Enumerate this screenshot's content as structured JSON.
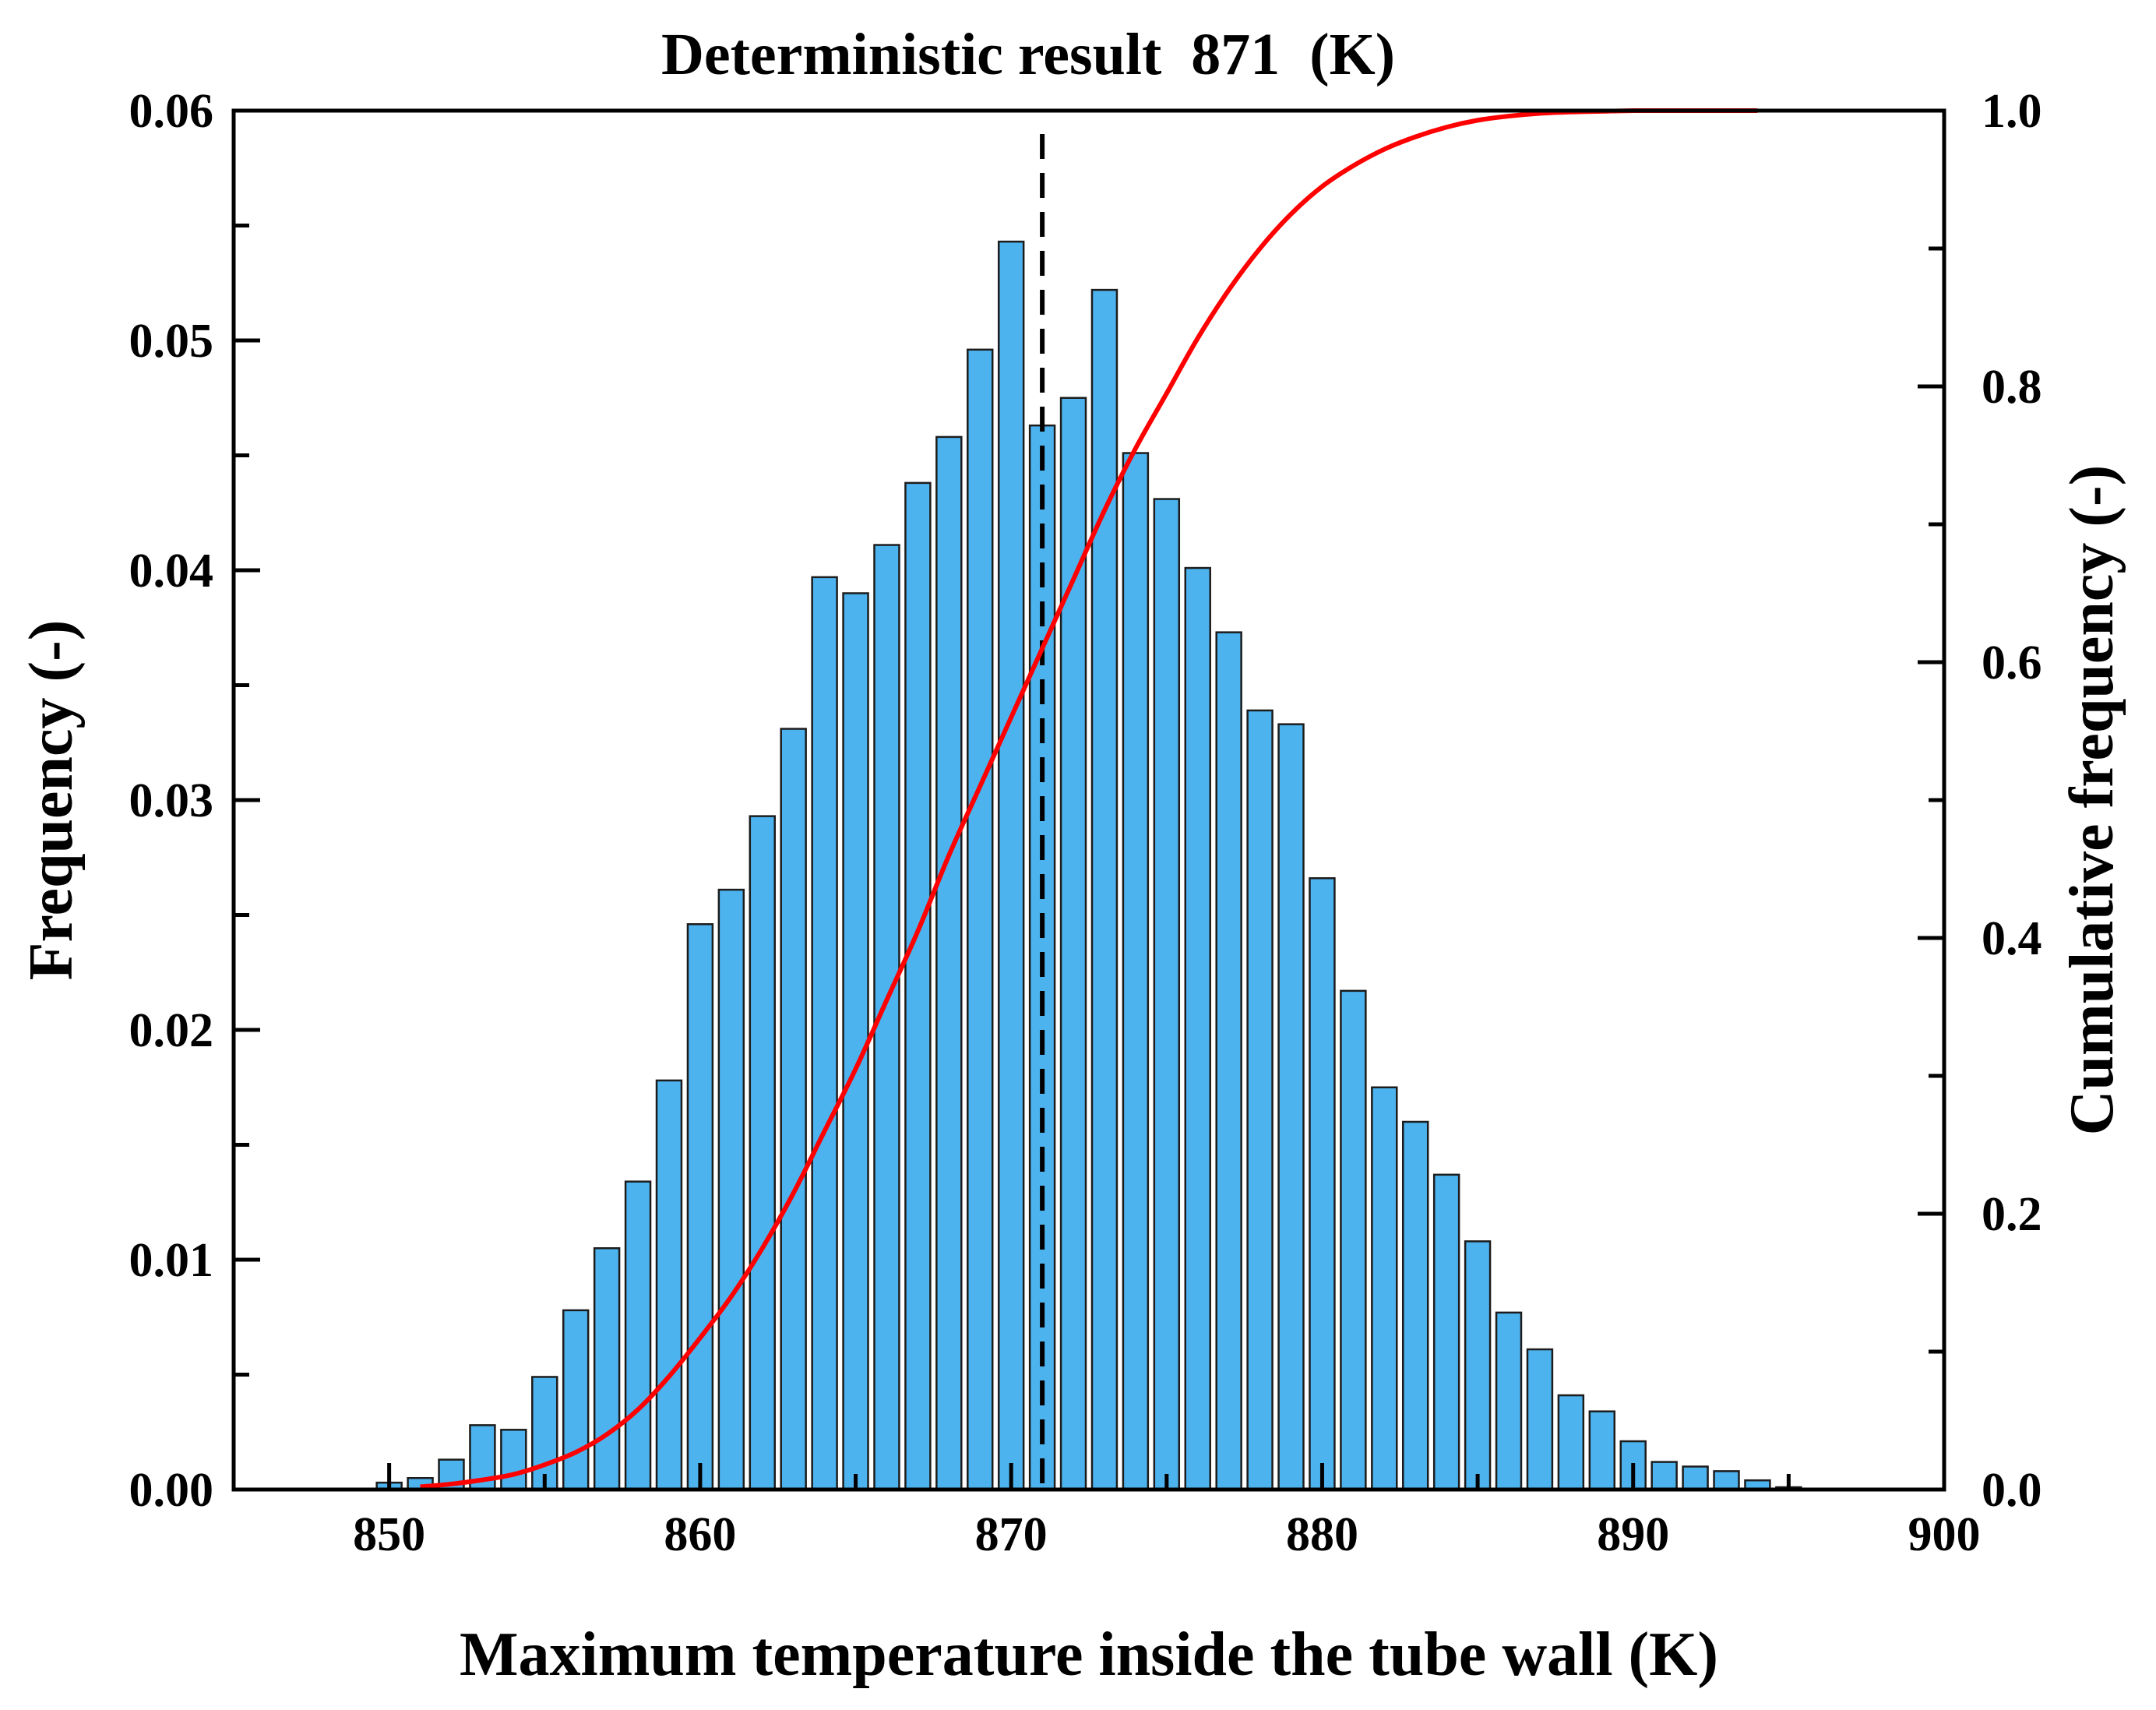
{
  "chart_data": {
    "type": "bar",
    "title": "Deterministic result  871  (K)",
    "xlabel": "Maximum temperature inside the tube wall (K)",
    "ylabel": "Frequency (-)",
    "y2label": "Cumulative frequency (-)",
    "xlim": [
      845,
      900
    ],
    "ylim": [
      0,
      0.06
    ],
    "y2lim": [
      0,
      1.0
    ],
    "xticks": [
      "850",
      "860",
      "870",
      "880",
      "890",
      "900"
    ],
    "yticks": [
      "0.00",
      "0.01",
      "0.02",
      "0.03",
      "0.04",
      "0.05",
      "0.06"
    ],
    "y2ticks": [
      "0.0",
      "0.2",
      "0.4",
      "0.6",
      "0.8",
      "1.0"
    ],
    "deterministic_value": 871,
    "bar_width": 0.8,
    "colors": {
      "bars": "#4db3ef",
      "bar_edge": "#1c1c1c",
      "cdf": "#ff0000",
      "deterministic_line": "#000000"
    },
    "series": [
      {
        "name": "Frequency",
        "type": "bar",
        "axis": "left",
        "x": [
          850,
          851,
          852,
          853,
          854,
          855,
          856,
          857,
          858,
          859,
          860,
          861,
          862,
          863,
          864,
          865,
          866,
          867,
          868,
          869,
          870,
          871,
          872,
          873,
          874,
          875,
          876,
          877,
          878,
          879,
          880,
          881,
          882,
          883,
          884,
          885,
          886,
          887,
          888,
          889,
          890,
          891,
          892,
          893,
          894,
          895
        ],
        "values": [
          0.0003,
          0.0005,
          0.0013,
          0.0028,
          0.0026,
          0.0049,
          0.0078,
          0.0105,
          0.0134,
          0.0178,
          0.0246,
          0.0261,
          0.0293,
          0.0331,
          0.0397,
          0.039,
          0.0411,
          0.0438,
          0.0458,
          0.0496,
          0.0543,
          0.0463,
          0.0475,
          0.0522,
          0.0451,
          0.0431,
          0.0401,
          0.0373,
          0.0339,
          0.0333,
          0.0266,
          0.0217,
          0.0175,
          0.016,
          0.0137,
          0.0108,
          0.0077,
          0.0061,
          0.0041,
          0.0034,
          0.0021,
          0.0012,
          0.001,
          0.0008,
          0.0004,
          0.0001
        ]
      },
      {
        "name": "Cumulative frequency",
        "type": "line",
        "axis": "right",
        "x": [
          851,
          852,
          853,
          854,
          855,
          856,
          857,
          858,
          859,
          860,
          861,
          862,
          863,
          864,
          865,
          866,
          867,
          868,
          869,
          870,
          871,
          872,
          873,
          874,
          875,
          876,
          877,
          878,
          879,
          880,
          881,
          882,
          883,
          884,
          885,
          886,
          887,
          888,
          889,
          890,
          891,
          892,
          893,
          894
        ],
        "values": [
          0.002,
          0.004,
          0.007,
          0.011,
          0.018,
          0.027,
          0.04,
          0.058,
          0.082,
          0.11,
          0.14,
          0.175,
          0.215,
          0.26,
          0.305,
          0.355,
          0.405,
          0.46,
          0.51,
          0.56,
          0.61,
          0.66,
          0.71,
          0.755,
          0.795,
          0.835,
          0.87,
          0.9,
          0.925,
          0.945,
          0.96,
          0.972,
          0.981,
          0.988,
          0.993,
          0.996,
          0.998,
          0.999,
          0.9995,
          1.0,
          1.0,
          1.0,
          1.0,
          1.0
        ]
      }
    ]
  }
}
